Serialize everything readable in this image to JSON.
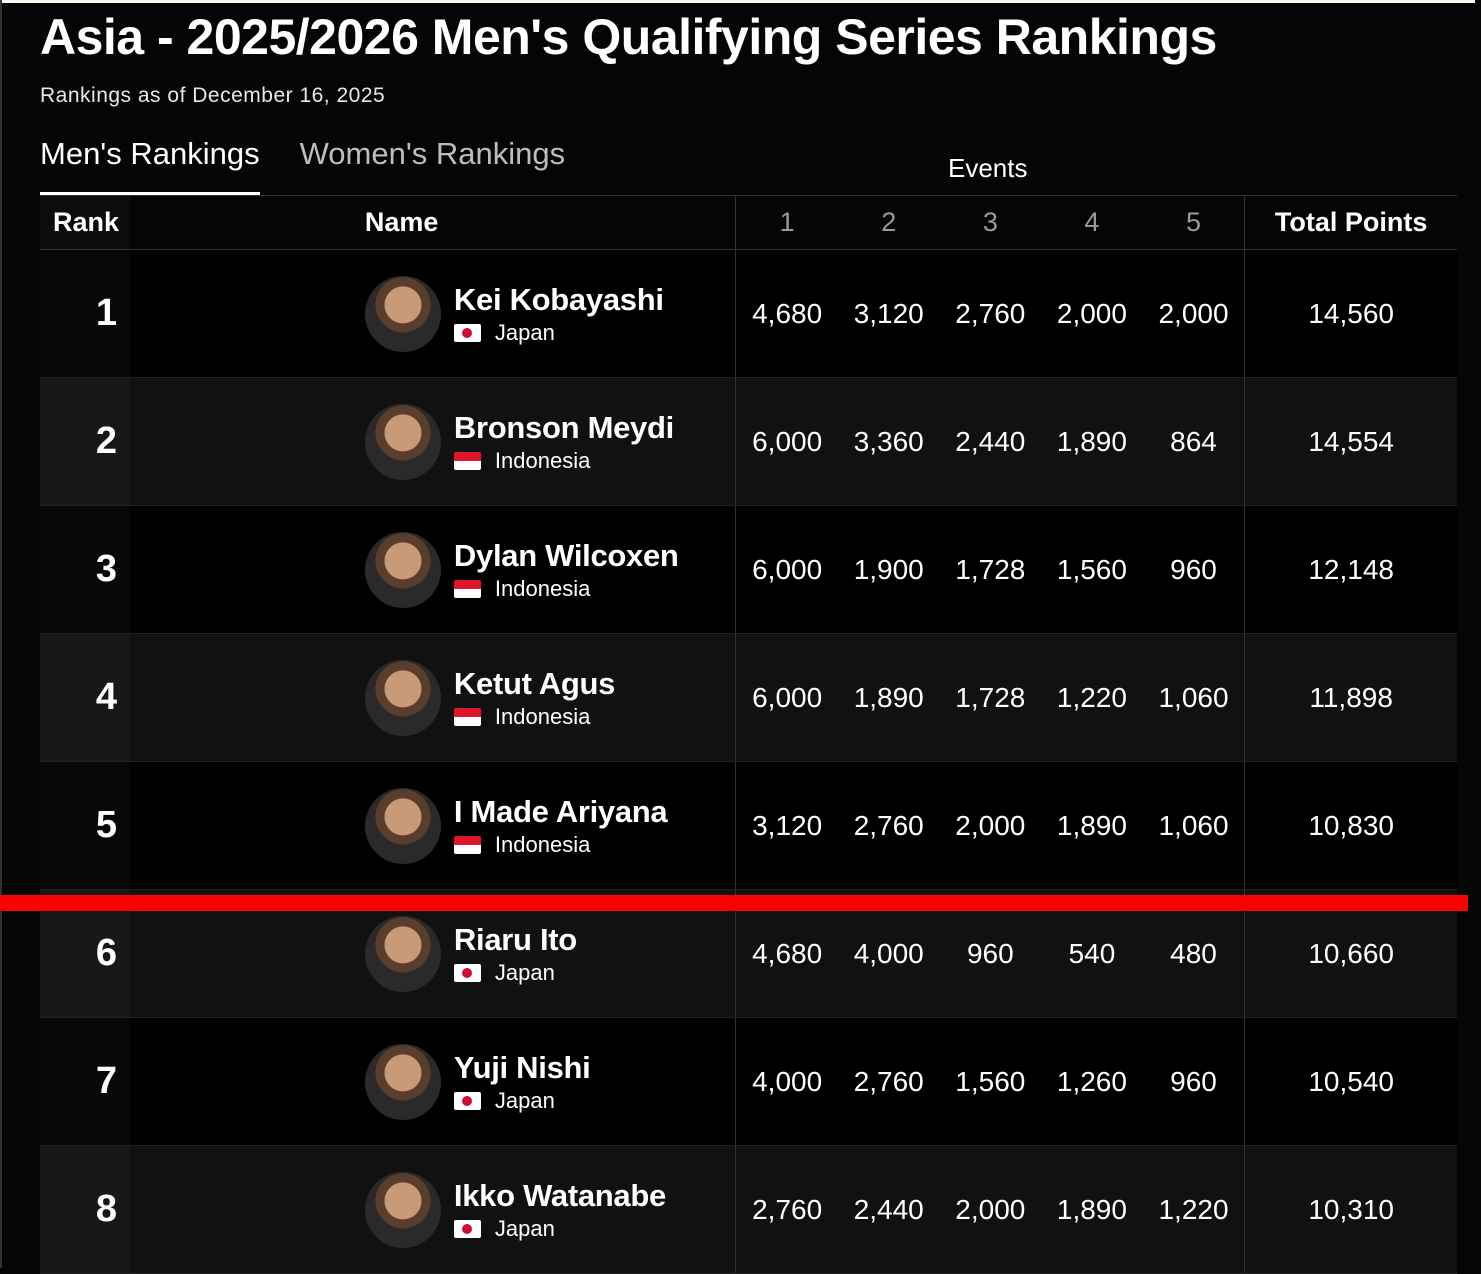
{
  "title": "Asia - 2025/2026 Men's Qualifying Series Rankings",
  "subtitle": "Rankings as of December 16, 2025",
  "tabs": [
    {
      "label": "Men's Rankings",
      "active": true
    },
    {
      "label": "Women's Rankings",
      "active": false
    }
  ],
  "events_label": "Events",
  "headers": {
    "rank": "Rank",
    "name": "Name",
    "events": [
      "1",
      "2",
      "3",
      "4",
      "5"
    ],
    "total": "Total Points"
  },
  "colors": {
    "background": "#000000",
    "cutline": "#ff0000",
    "japan_flag_red": "#c8102e",
    "indonesia_flag_red": "#e0142a"
  },
  "rows": [
    {
      "rank": "1",
      "name": "Kei Kobayashi",
      "country": "Japan",
      "flag": "japan",
      "events": [
        "4,680",
        "3,120",
        "2,760",
        "2,000",
        "2,000"
      ],
      "total": "14,560"
    },
    {
      "rank": "2",
      "name": "Bronson Meydi",
      "country": "Indonesia",
      "flag": "indonesia",
      "events": [
        "6,000",
        "3,360",
        "2,440",
        "1,890",
        "864"
      ],
      "total": "14,554"
    },
    {
      "rank": "3",
      "name": "Dylan Wilcoxen",
      "country": "Indonesia",
      "flag": "indonesia",
      "events": [
        "6,000",
        "1,900",
        "1,728",
        "1,560",
        "960"
      ],
      "total": "12,148"
    },
    {
      "rank": "4",
      "name": "Ketut Agus",
      "country": "Indonesia",
      "flag": "indonesia",
      "events": [
        "6,000",
        "1,890",
        "1,728",
        "1,220",
        "1,060"
      ],
      "total": "11,898"
    },
    {
      "rank": "5",
      "name": "I Made Ariyana",
      "country": "Indonesia",
      "flag": "indonesia",
      "events": [
        "3,120",
        "2,760",
        "2,000",
        "1,890",
        "1,060"
      ],
      "total": "10,830"
    },
    {
      "rank": "6",
      "name": "Riaru Ito",
      "country": "Japan",
      "flag": "japan",
      "events": [
        "4,680",
        "4,000",
        "960",
        "540",
        "480"
      ],
      "total": "10,660"
    },
    {
      "rank": "7",
      "name": "Yuji Nishi",
      "country": "Japan",
      "flag": "japan",
      "events": [
        "4,000",
        "2,760",
        "1,560",
        "1,260",
        "960"
      ],
      "total": "10,540"
    },
    {
      "rank": "8",
      "name": "Ikko Watanabe",
      "country": "Japan",
      "flag": "japan",
      "events": [
        "2,760",
        "2,440",
        "2,000",
        "1,890",
        "1,220"
      ],
      "total": "10,310"
    }
  ]
}
